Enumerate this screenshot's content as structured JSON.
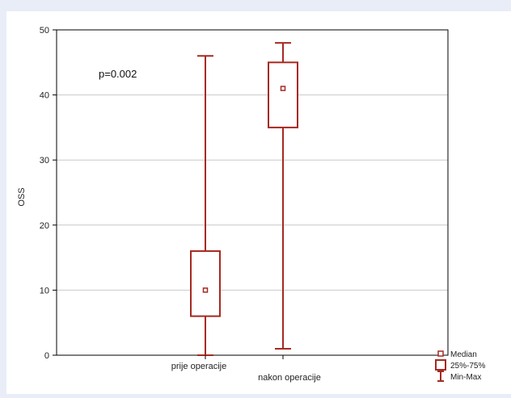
{
  "chart_data": {
    "type": "boxplot",
    "title": "",
    "ylabel": "OSS",
    "xlabel": "",
    "ylim": [
      0,
      50
    ],
    "yticks": [
      0,
      10,
      20,
      30,
      40,
      50
    ],
    "grid": true,
    "annotation": "p=0.002",
    "categories": [
      "prije operacije",
      "nakon operacije"
    ],
    "boxes": [
      {
        "category": "prije operacije",
        "min": 0,
        "q1": 6,
        "median": 10,
        "q3": 16,
        "max": 46
      },
      {
        "category": "nakon operacije",
        "min": 1,
        "q1": 35,
        "median": 41,
        "q3": 45,
        "max": 48
      }
    ],
    "legend": {
      "position": "bottom-right",
      "items": [
        {
          "symbol": "median",
          "label": "Median"
        },
        {
          "symbol": "box",
          "label": "25%-75%"
        },
        {
          "symbol": "whisker",
          "label": "Min-Max"
        }
      ]
    },
    "colors": {
      "box": "#a52a22",
      "grid": "#c8c8c8",
      "axis": "#000000"
    }
  }
}
